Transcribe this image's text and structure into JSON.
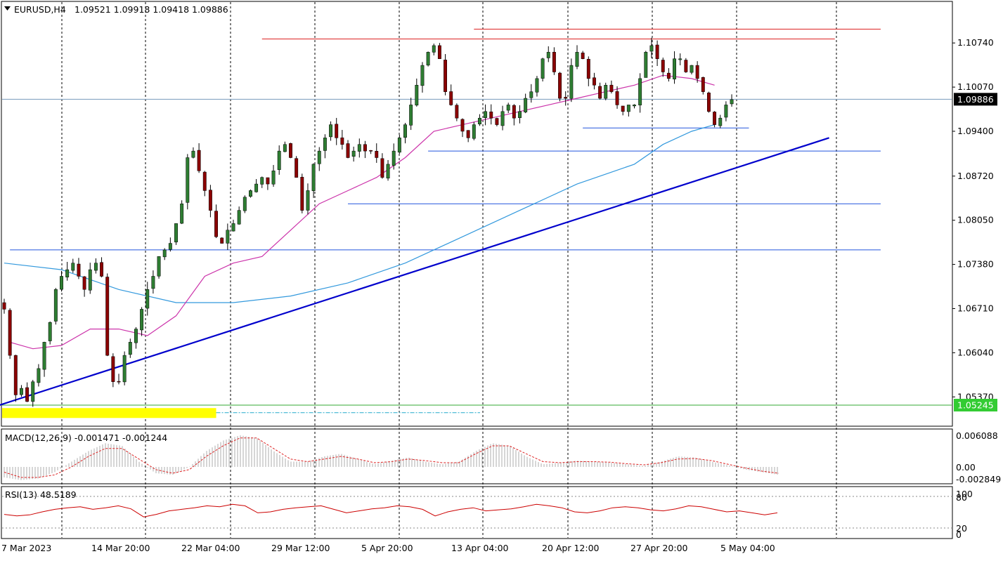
{
  "header": {
    "symbol": "EURUSD,H4",
    "ohlc": "1.09521 1.09918 1.09418 1.09886"
  },
  "macd": {
    "label": "MACD(12,26,9) -0.001471 -0.001244",
    "ticks": [
      "0.006088",
      "0.00",
      "-0.002849"
    ]
  },
  "rsi": {
    "label": "RSI(13) 48.5189",
    "ticks": [
      "100",
      "80",
      "20",
      "0"
    ]
  },
  "price_badges": {
    "current": "1.09886",
    "level": "1.05245"
  },
  "colors": {
    "bull": "#2e7d32",
    "bear": "#8b0000",
    "wick": "#000000",
    "ma_fast": "#cc33aa",
    "ma_slow": "#3399dd",
    "trendline": "#0000cc",
    "hline_blue": "#2255dd",
    "hline_red": "#dd2222",
    "level_green": "#33aa33",
    "zone": "#ffff00",
    "macd_hist": "#bbbbbb",
    "macd_signal": "#dd2222",
    "rsi_line": "#cc0000"
  },
  "chart_data": {
    "type": "candlestick",
    "symbol": "EURUSD",
    "timeframe": "H4",
    "x_ticks": [
      "7 Mar 2023",
      "14 Mar 20:00",
      "22 Mar 04:00",
      "29 Mar 12:00",
      "5 Apr 20:00",
      "13 Apr 04:00",
      "20 Apr 12:00",
      "27 Apr 20:00",
      "5 May 04:00"
    ],
    "y_ticks": [
      "1.10740",
      "1.10070",
      "1.09400",
      "1.08720",
      "1.08050",
      "1.07380",
      "1.06710",
      "1.06040",
      "1.05370"
    ],
    "ylim": [
      1.05,
      1.112
    ],
    "close_path": [
      1.067,
      1.06,
      1.054,
      1.055,
      1.053,
      1.056,
      1.058,
      1.062,
      1.065,
      1.07,
      1.072,
      1.073,
      1.074,
      1.072,
      1.07,
      1.073,
      1.074,
      1.072,
      1.06,
      1.056,
      1.056,
      1.06,
      1.062,
      1.064,
      1.067,
      1.07,
      1.072,
      1.075,
      1.076,
      1.077,
      1.08,
      1.083,
      1.09,
      1.091,
      1.088,
      1.085,
      1.082,
      1.078,
      1.077,
      1.079,
      1.08,
      1.082,
      1.084,
      1.085,
      1.086,
      1.087,
      1.086,
      1.088,
      1.091,
      1.092,
      1.09,
      1.087,
      1.082,
      1.085,
      1.089,
      1.091,
      1.093,
      1.095,
      1.093,
      1.092,
      1.09,
      1.091,
      1.092,
      1.091,
      1.091,
      1.09,
      1.087,
      1.089,
      1.091,
      1.093,
      1.095,
      1.098,
      1.101,
      1.104,
      1.106,
      1.107,
      1.105,
      1.1,
      1.098,
      1.096,
      1.094,
      1.093,
      1.095,
      1.096,
      1.097,
      1.096,
      1.095,
      1.097,
      1.098,
      1.096,
      1.097,
      1.099,
      1.1,
      1.102,
      1.105,
      1.106,
      1.103,
      1.099,
      1.099,
      1.104,
      1.106,
      1.105,
      1.102,
      1.101,
      1.099,
      1.101,
      1.1,
      1.098,
      1.097,
      1.098,
      1.098,
      1.102,
      1.106,
      1.107,
      1.105,
      1.103,
      1.102,
      1.105,
      1.105,
      1.103,
      1.104,
      1.102,
      1.1,
      1.097,
      1.095,
      1.096,
      1.098,
      1.0988
    ],
    "ma_fast": [
      [
        1,
        1.062
      ],
      [
        5,
        1.061
      ],
      [
        10,
        1.0615
      ],
      [
        15,
        1.064
      ],
      [
        20,
        1.064
      ],
      [
        25,
        1.063
      ],
      [
        30,
        1.066
      ],
      [
        35,
        1.072
      ],
      [
        40,
        1.074
      ],
      [
        45,
        1.075
      ],
      [
        50,
        1.079
      ],
      [
        55,
        1.083
      ],
      [
        60,
        1.085
      ],
      [
        65,
        1.087
      ],
      [
        70,
        1.09
      ],
      [
        75,
        1.094
      ],
      [
        80,
        1.095
      ],
      [
        85,
        1.096
      ],
      [
        90,
        1.097
      ],
      [
        95,
        1.098
      ],
      [
        100,
        1.099
      ],
      [
        105,
        1.1
      ],
      [
        110,
        1.101
      ],
      [
        115,
        1.1025
      ],
      [
        120,
        1.102
      ],
      [
        124,
        1.101
      ]
    ],
    "ma_slow": [
      [
        0,
        1.074
      ],
      [
        10,
        1.073
      ],
      [
        20,
        1.07
      ],
      [
        30,
        1.068
      ],
      [
        40,
        1.068
      ],
      [
        50,
        1.069
      ],
      [
        60,
        1.071
      ],
      [
        70,
        1.074
      ],
      [
        80,
        1.078
      ],
      [
        90,
        1.082
      ],
      [
        100,
        1.086
      ],
      [
        110,
        1.089
      ],
      [
        115,
        1.092
      ],
      [
        120,
        1.094
      ],
      [
        124,
        1.095
      ]
    ],
    "trendline": [
      [
        -6,
        1.051
      ],
      [
        144,
        1.093
      ]
    ],
    "hlines_blue": [
      [
        1,
        153,
        1.076
      ],
      [
        60,
        153,
        1.083
      ],
      [
        74,
        153,
        1.091
      ],
      [
        101,
        130,
        1.0945
      ]
    ],
    "hlines_red": [
      [
        45,
        145,
        1.108
      ],
      [
        82,
        153,
        1.1095
      ]
    ],
    "level_green": 1.05245,
    "current_price": 1.09886,
    "highlight_zone": [
      0,
      37,
      1.0505,
      1.052
    ],
    "macd_hist_path": [
      -0.002,
      -0.0025,
      -0.0022,
      -0.001,
      0.001,
      0.003,
      0.0045,
      0.004,
      0.001,
      -0.0012,
      -0.0015,
      0.0,
      0.003,
      0.005,
      0.006,
      0.0055,
      0.003,
      0.001,
      0.001,
      0.002,
      0.0025,
      0.0015,
      0.0005,
      0.0012,
      0.0018,
      0.001,
      0.0005,
      0.001,
      0.003,
      0.0045,
      0.004,
      0.002,
      0.0005,
      0.0008,
      0.0012,
      0.001,
      0.0008,
      0.0005,
      0.0002,
      0.001,
      0.002,
      0.0018,
      0.001,
      0.0003,
      -0.0005,
      -0.001,
      -0.0015
    ],
    "macd_signal_path": [
      -0.001,
      -0.002,
      -0.002,
      -0.0015,
      0.0,
      0.002,
      0.0035,
      0.0035,
      0.0015,
      -0.0005,
      -0.0012,
      -0.0005,
      0.002,
      0.004,
      0.0055,
      0.0055,
      0.0035,
      0.0015,
      0.001,
      0.0015,
      0.002,
      0.0015,
      0.0008,
      0.001,
      0.0015,
      0.0012,
      0.0008,
      0.0008,
      0.0025,
      0.004,
      0.004,
      0.0025,
      0.001,
      0.0008,
      0.001,
      0.001,
      0.0009,
      0.0006,
      0.0004,
      0.0008,
      0.0015,
      0.0016,
      0.0012,
      0.0005,
      -0.0002,
      -0.0008,
      -0.0012
    ],
    "rsi_path": [
      45,
      42,
      44,
      50,
      55,
      58,
      60,
      55,
      58,
      62,
      56,
      40,
      45,
      52,
      55,
      58,
      62,
      60,
      65,
      62,
      48,
      50,
      55,
      58,
      60,
      62,
      55,
      48,
      52,
      56,
      58,
      62,
      60,
      55,
      42,
      50,
      55,
      58,
      52,
      54,
      56,
      60,
      65,
      62,
      58,
      50,
      48,
      52,
      58,
      60,
      58,
      54,
      52,
      56,
      62,
      60,
      55,
      50,
      52,
      48,
      44,
      48
    ]
  }
}
